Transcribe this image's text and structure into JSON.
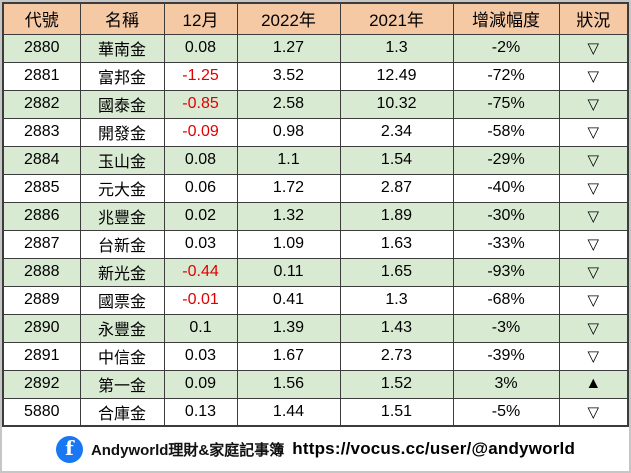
{
  "colors": {
    "header_bg": "#f6c9a5",
    "row_alt_green": "#d9ead3",
    "row_white": "#ffffff",
    "negative_text": "#e00000",
    "facebook_blue": "#1877f2",
    "border": "#3c3c3c"
  },
  "chart_data": {
    "type": "table",
    "columns": [
      "代號",
      "名稱",
      "12月",
      "2022年",
      "2021年",
      "增減幅度",
      "狀況"
    ],
    "column_keys": [
      "code",
      "name",
      "dec",
      "y2022",
      "y2021",
      "change",
      "status"
    ],
    "rows": [
      [
        "2880",
        "華南金",
        "0.08",
        "1.27",
        "1.3",
        "-2%",
        "▽"
      ],
      [
        "2881",
        "富邦金",
        "-1.25",
        "3.52",
        "12.49",
        "-72%",
        "▽"
      ],
      [
        "2882",
        "國泰金",
        "-0.85",
        "2.58",
        "10.32",
        "-75%",
        "▽"
      ],
      [
        "2883",
        "開發金",
        "-0.09",
        "0.98",
        "2.34",
        "-58%",
        "▽"
      ],
      [
        "2884",
        "玉山金",
        "0.08",
        "1.1",
        "1.54",
        "-29%",
        "▽"
      ],
      [
        "2885",
        "元大金",
        "0.06",
        "1.72",
        "2.87",
        "-40%",
        "▽"
      ],
      [
        "2886",
        "兆豐金",
        "0.02",
        "1.32",
        "1.89",
        "-30%",
        "▽"
      ],
      [
        "2887",
        "台新金",
        "0.03",
        "1.09",
        "1.63",
        "-33%",
        "▽"
      ],
      [
        "2888",
        "新光金",
        "-0.44",
        "0.11",
        "1.65",
        "-93%",
        "▽"
      ],
      [
        "2889",
        "國票金",
        "-0.01",
        "0.41",
        "1.3",
        "-68%",
        "▽"
      ],
      [
        "2890",
        "永豐金",
        "0.1",
        "1.39",
        "1.43",
        "-3%",
        "▽"
      ],
      [
        "2891",
        "中信金",
        "0.03",
        "1.67",
        "2.73",
        "-39%",
        "▽"
      ],
      [
        "2892",
        "第一金",
        "0.09",
        "1.56",
        "1.52",
        "3%",
        "▲"
      ],
      [
        "5880",
        "合庫金",
        "0.13",
        "1.44",
        "1.51",
        "-5%",
        "▽"
      ]
    ]
  },
  "footer": {
    "facebook_icon_letter": "f",
    "brand": "Andyworld理財&家庭記事簿",
    "url": "https://vocus.cc/user/@andyworld"
  }
}
